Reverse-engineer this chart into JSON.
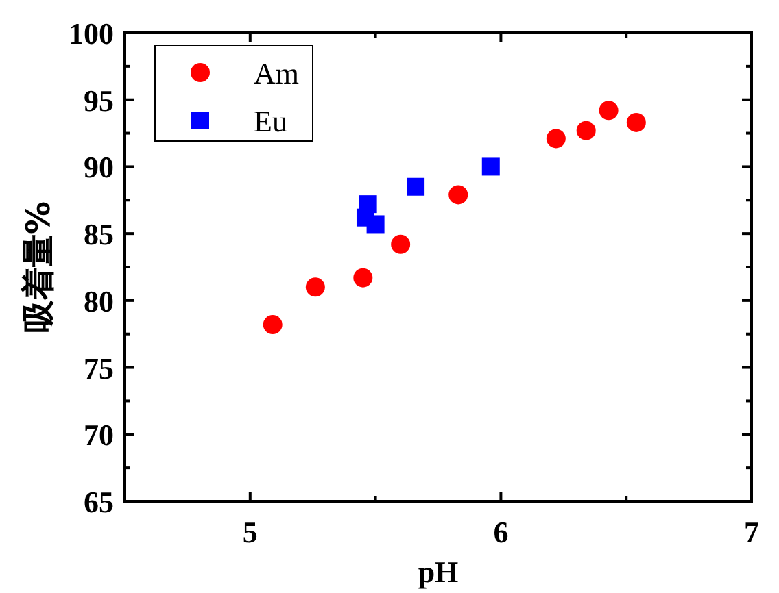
{
  "chart_data": {
    "type": "scatter",
    "xlabel": "pH",
    "ylabel": "吸着量%",
    "xlim": [
      4.5,
      7
    ],
    "xticks": [
      5,
      6,
      7
    ],
    "ylim": [
      65,
      100
    ],
    "yticks": [
      65,
      70,
      75,
      80,
      85,
      90,
      95,
      100
    ],
    "legend": "top left",
    "grid": false,
    "series": [
      {
        "name": "Am",
        "color": "#ff0000",
        "marker": "circle",
        "x": [
          5.09,
          5.26,
          5.45,
          5.6,
          5.83,
          6.22,
          6.34,
          6.43,
          6.54
        ],
        "values": [
          78.2,
          81.0,
          81.7,
          84.2,
          87.9,
          92.1,
          92.7,
          94.2,
          93.3
        ]
      },
      {
        "name": "Eu",
        "color": "#0000ff",
        "marker": "square",
        "x": [
          5.46,
          5.47,
          5.5,
          5.66,
          5.96
        ],
        "values": [
          86.2,
          87.2,
          85.7,
          88.5,
          90.0
        ]
      }
    ]
  }
}
